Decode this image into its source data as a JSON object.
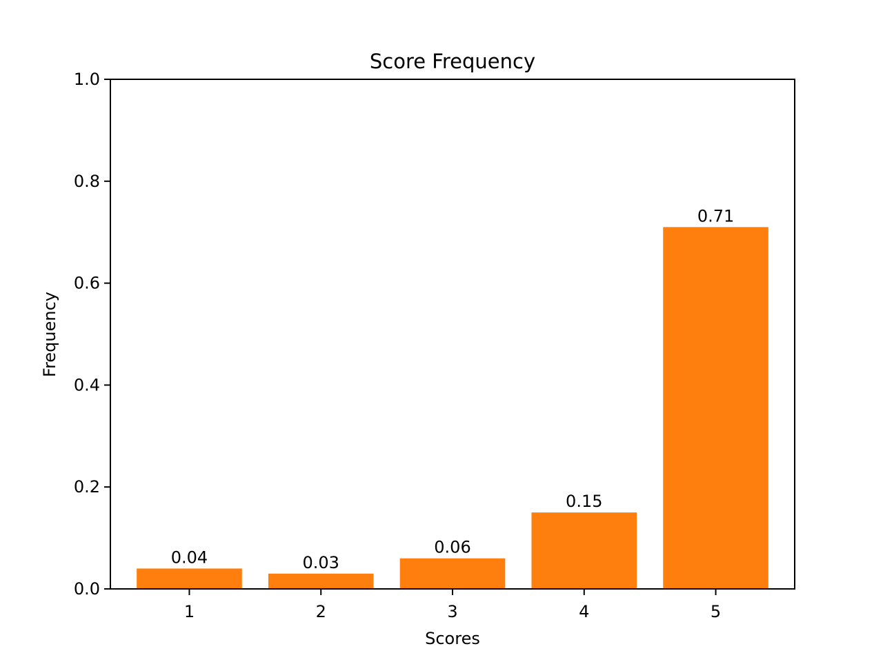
{
  "chart_data": {
    "type": "bar",
    "title": "Score Frequency",
    "xlabel": "Scores",
    "ylabel": "Frequency",
    "categories": [
      "1",
      "2",
      "3",
      "4",
      "5"
    ],
    "values": [
      0.04,
      0.03,
      0.06,
      0.15,
      0.71
    ],
    "data_labels": [
      "0.04",
      "0.03",
      "0.06",
      "0.15",
      "0.71"
    ],
    "ylim": [
      0,
      1.0
    ],
    "yticks": [
      0.0,
      0.2,
      0.4,
      0.6,
      0.8,
      1.0
    ],
    "ytick_labels": [
      "0.0",
      "0.2",
      "0.4",
      "0.6",
      "0.8",
      "1.0"
    ],
    "bar_color": "#ff7f0e",
    "grid": false,
    "legend": "none"
  }
}
